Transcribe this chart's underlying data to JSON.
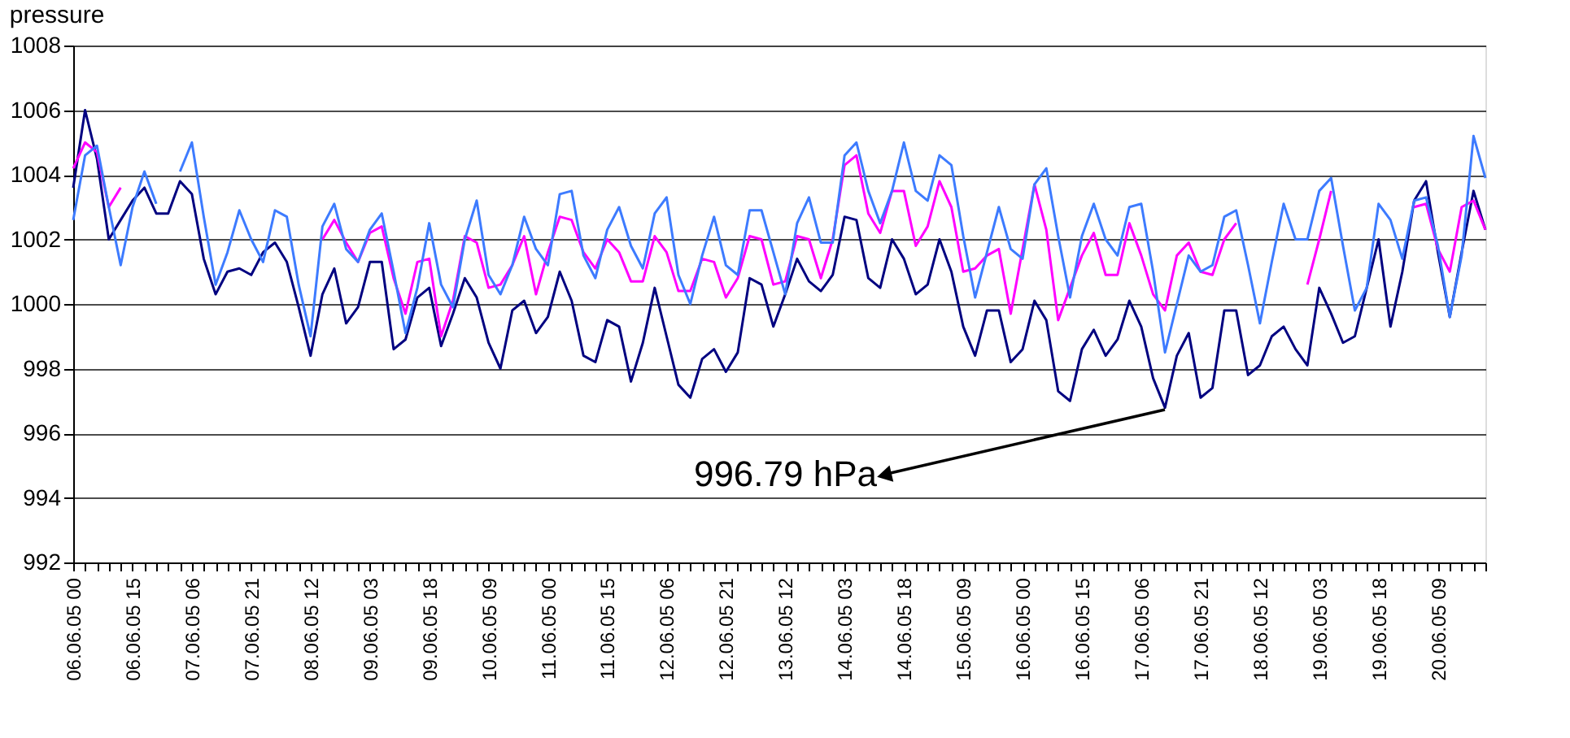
{
  "chart_data": {
    "type": "line",
    "title": "pressure",
    "categories": [
      "06.06.05 00",
      null,
      null,
      null,
      null,
      "06.06.05 15",
      null,
      null,
      null,
      null,
      "07.06.05 06",
      null,
      null,
      null,
      null,
      "07.06.05 21",
      null,
      null,
      null,
      null,
      "08.06.05 12",
      null,
      null,
      null,
      null,
      "09.06.05 03",
      null,
      null,
      null,
      null,
      "09.06.05 18",
      null,
      null,
      null,
      null,
      "10.06.05 09",
      null,
      null,
      null,
      null,
      "11.06.05 00",
      null,
      null,
      null,
      null,
      "11.06.05 15",
      null,
      null,
      null,
      null,
      "12.06.05 06",
      null,
      null,
      null,
      null,
      "12.06.05 21",
      null,
      null,
      null,
      null,
      "13.06.05 12",
      null,
      null,
      null,
      null,
      "14.06.05 03",
      null,
      null,
      null,
      null,
      "14.06.05 18",
      null,
      null,
      null,
      null,
      "15.06.05 09",
      null,
      null,
      null,
      null,
      "16.06.05 00",
      null,
      null,
      null,
      null,
      "16.06.05 15",
      null,
      null,
      null,
      null,
      "17.06.05 06",
      null,
      null,
      null,
      null,
      "17.06.05 21",
      null,
      null,
      null,
      null,
      "18.06.05 12",
      null,
      null,
      null,
      null,
      "19.06.05 03",
      null,
      null,
      null,
      null,
      "19.06.05 18",
      null,
      null,
      null,
      null,
      "20.06.05 09",
      null,
      null,
      null,
      null
    ],
    "series": [
      {
        "color": "#000080",
        "values": [
          1003.6,
          1006,
          1004.5,
          1002,
          1002.6,
          1003.2,
          1003.6,
          1002.8,
          1002.8,
          1003.8,
          1003.4,
          1001.4,
          1000.3,
          1001,
          1001.1,
          1000.9,
          1001.6,
          1001.9,
          1001.3,
          999.9,
          998.4,
          1000.3,
          1001.1,
          999.4,
          999.9,
          1001.3,
          1001.3,
          998.6,
          998.9,
          1000.2,
          1000.5,
          998.7,
          999.7,
          1000.8,
          1000.2,
          998.8,
          998,
          999.8,
          1000.1,
          999.1,
          999.6,
          1001,
          1000.1,
          998.4,
          998.2,
          999.5,
          999.3,
          997.6,
          998.8,
          1000.5,
          999,
          997.5,
          997.1,
          998.3,
          998.6,
          997.9,
          998.5,
          1000.8,
          1000.6,
          999.3,
          1000.3,
          1001.4,
          1000.7,
          1000.4,
          1000.9,
          1002.7,
          1002.6,
          1000.8,
          1000.5,
          1002,
          1001.4,
          1000.3,
          1000.6,
          1002,
          1001,
          999.3,
          998.4,
          999.8,
          999.8,
          998.2,
          998.6,
          1000.1,
          999.5,
          997.3,
          997,
          998.6,
          999.2,
          998.4,
          998.9,
          1000.1,
          999.3,
          997.7,
          996.79,
          998.4,
          999.1,
          997.1,
          997.4,
          999.8,
          999.8,
          997.8,
          998.1,
          999,
          999.3,
          998.6,
          998.1,
          1000.5,
          999.7,
          998.8,
          999,
          1000.5,
          1002,
          999.3,
          1001,
          1003.2,
          1003.8,
          1001.6,
          999.6,
          1001.6,
          1003.5,
          1002.3
        ]
      },
      {
        "color": "#ff00ff",
        "values": [
          1004.2,
          1005,
          1004.7,
          1003,
          1003.6,
          null,
          null,
          null,
          null,
          null,
          null,
          null,
          null,
          null,
          null,
          null,
          null,
          null,
          null,
          null,
          null,
          1002,
          1002.6,
          1001.9,
          1001.3,
          1002.2,
          1002.4,
          1000.8,
          999.7,
          1001.3,
          1001.4,
          999,
          1000.1,
          1002.1,
          1001.9,
          1000.5,
          1000.6,
          1001.2,
          1002.1,
          1000.3,
          1001.6,
          1002.7,
          1002.6,
          1001.6,
          1001.1,
          1002,
          1001.6,
          1000.7,
          1000.7,
          1002.1,
          1001.6,
          1000.4,
          1000.4,
          1001.4,
          1001.3,
          1000.2,
          1000.8,
          1002.1,
          1002,
          1000.6,
          1000.7,
          1002.1,
          1002,
          1000.8,
          1002,
          1004.3,
          1004.6,
          1002.8,
          1002.2,
          1003.5,
          1003.5,
          1001.8,
          1002.4,
          1003.8,
          1003,
          1001,
          1001.1,
          1001.5,
          1001.7,
          999.7,
          1001.7,
          1003.7,
          1002.3,
          999.5,
          1000.5,
          1001.5,
          1002.2,
          1000.9,
          1000.9,
          1002.5,
          1001.5,
          1000.3,
          999.8,
          1001.5,
          1001.9,
          1001,
          1000.9,
          1002,
          1002.5,
          null,
          null,
          null,
          null,
          null,
          1000.6,
          1002,
          1003.5,
          null,
          null,
          null,
          null,
          null,
          null,
          1003,
          1003.1,
          1001.7,
          1001,
          1003,
          1003.2,
          1002.3
        ]
      },
      {
        "color": "#3d7bff",
        "values": [
          1002.6,
          1004.6,
          1004.9,
          1003,
          1001.2,
          1003,
          1004.1,
          1003.1,
          null,
          1004.1,
          1005,
          1002.7,
          1000.6,
          1001.6,
          1002.9,
          1002,
          1001.3,
          1002.9,
          1002.7,
          1000.6,
          999,
          1002.4,
          1003.1,
          1001.7,
          1001.3,
          1002.3,
          1002.8,
          1001,
          999.1,
          1000.5,
          1002.5,
          1000.6,
          999.9,
          1002,
          1003.2,
          1000.9,
          1000.3,
          1001.2,
          1002.7,
          1001.7,
          1001.2,
          1003.4,
          1003.5,
          1001.5,
          1000.8,
          1002.3,
          1003,
          1001.8,
          1001.1,
          1002.8,
          1003.3,
          1000.9,
          1000,
          1001.5,
          1002.7,
          1001.2,
          1000.9,
          1002.9,
          1002.9,
          1001.6,
          1000.3,
          1002.5,
          1003.3,
          1001.9,
          1001.9,
          1004.6,
          1005,
          1003.5,
          1002.5,
          1003.5,
          1005,
          1003.5,
          1003.2,
          1004.6,
          1004.3,
          1002.1,
          1000.2,
          1001.6,
          1003,
          1001.7,
          1001.4,
          1003.7,
          1004.2,
          1002.1,
          1000.2,
          1002.1,
          1003.1,
          1002,
          1001.5,
          1003,
          1003.1,
          1001,
          998.5,
          1000,
          1001.5,
          1001,
          1001.2,
          1002.7,
          1002.9,
          1001.2,
          999.4,
          1001.3,
          1003.1,
          1002,
          1002,
          1003.5,
          1003.9,
          1001.8,
          999.8,
          1000.5,
          1003.1,
          1002.6,
          1001.4,
          1003.2,
          1003.3,
          1001.8,
          999.6,
          1001.5,
          1005.2,
          1003.9
        ]
      }
    ],
    "ylim": [
      992,
      1008
    ],
    "yticks": [
      992,
      994,
      996,
      998,
      1000,
      1002,
      1004,
      1006,
      1008
    ],
    "grid": "y",
    "legend": false,
    "annotations": [
      "996.79 hPa"
    ]
  }
}
